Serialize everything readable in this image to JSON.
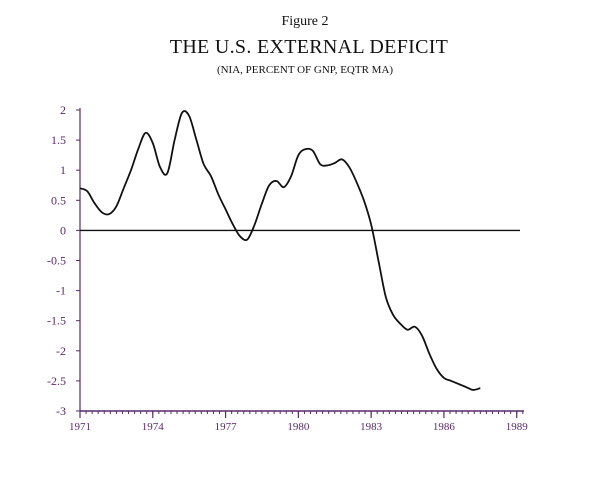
{
  "header": {
    "figure_label": "Figure 2",
    "title": "THE U.S. EXTERNAL DEFICIT",
    "subtitle": "(NIA, PERCENT OF GNP, EQTR MA)"
  },
  "colors": {
    "axis": "#5a2a6b",
    "line": "#111111"
  },
  "chart_data": {
    "type": "line",
    "title": "THE U.S. EXTERNAL DEFICIT",
    "subtitle": "(NIA, PERCENT OF GNP, EQTR MA)",
    "xlabel": "",
    "ylabel": "",
    "xlim": [
      1971,
      1989.3
    ],
    "ylim": [
      -3,
      2
    ],
    "yticks": [
      2,
      1.5,
      1,
      0.5,
      0,
      -0.5,
      -1,
      -1.5,
      -2,
      -2.5,
      -3
    ],
    "ytick_labels": [
      "2",
      "1.5",
      "1",
      "0.5",
      "0",
      "-0.5",
      "-1",
      "-1.5",
      "-2",
      "-2.5",
      "-3"
    ],
    "xticks": [
      1971,
      1974,
      1977,
      1980,
      1983,
      1986,
      1989
    ],
    "xtick_labels": [
      "1971",
      "1974",
      "1977",
      "1980",
      "1983",
      "1986",
      "1989"
    ],
    "grid": false,
    "reference_line": 0,
    "series": [
      {
        "x": [
          1971.0,
          1971.3,
          1971.6,
          1971.9,
          1972.2,
          1972.5,
          1972.8,
          1973.1,
          1973.4,
          1973.7,
          1974.0,
          1974.3,
          1974.6,
          1974.9,
          1975.2,
          1975.5,
          1975.8,
          1976.1,
          1976.4,
          1976.7,
          1977.0,
          1977.3,
          1977.6,
          1977.9,
          1978.2,
          1978.5,
          1978.8,
          1979.1,
          1979.4,
          1979.7,
          1980.0,
          1980.3,
          1980.6,
          1980.9,
          1981.2,
          1981.5,
          1981.8,
          1982.1,
          1982.4,
          1982.7,
          1983.0,
          1983.3,
          1983.6,
          1983.9,
          1984.2,
          1984.5,
          1984.8,
          1985.1,
          1985.4,
          1985.7,
          1986.0,
          1986.3,
          1986.6,
          1986.9,
          1987.2,
          1987.5
        ],
        "y": [
          0.7,
          0.65,
          0.45,
          0.3,
          0.27,
          0.4,
          0.7,
          1.0,
          1.35,
          1.62,
          1.45,
          1.05,
          0.95,
          1.5,
          1.95,
          1.9,
          1.5,
          1.1,
          0.9,
          0.6,
          0.35,
          0.1,
          -0.1,
          -0.15,
          0.1,
          0.45,
          0.75,
          0.82,
          0.72,
          0.9,
          1.25,
          1.35,
          1.32,
          1.1,
          1.08,
          1.12,
          1.18,
          1.05,
          0.8,
          0.5,
          0.1,
          -0.5,
          -1.1,
          -1.4,
          -1.55,
          -1.65,
          -1.6,
          -1.75,
          -2.05,
          -2.3,
          -2.45,
          -2.5,
          -2.55,
          -2.6,
          -2.65,
          -2.62
        ]
      }
    ]
  }
}
